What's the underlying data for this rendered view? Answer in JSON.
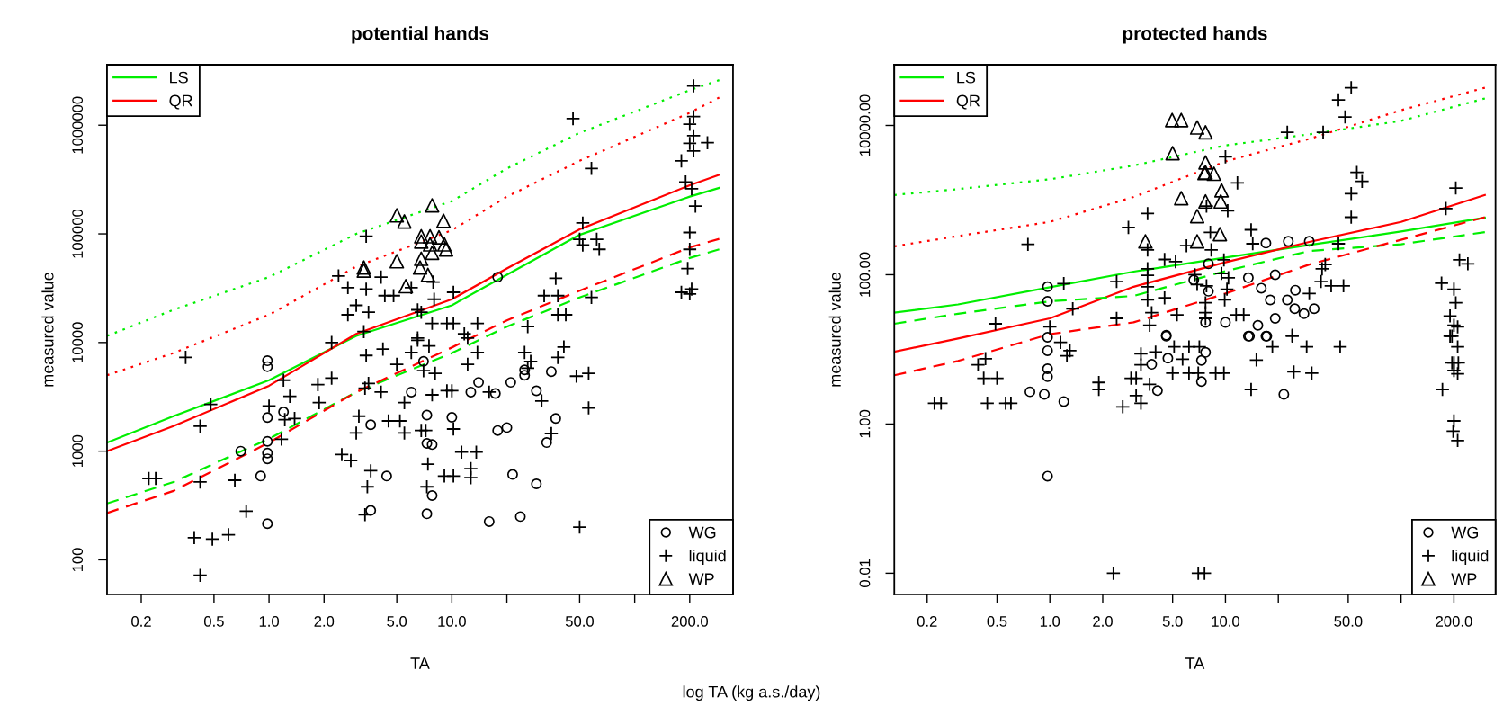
{
  "chart_data": [
    {
      "type": "scatter",
      "title": "potential hands",
      "xlabel": "TA",
      "ylabel": "measured value",
      "log": "xy",
      "legend": [
        "top left",
        "bottom right"
      ],
      "xlim": [
        0.13,
        345
      ],
      "ylim": [
        48,
        3600000
      ],
      "xticks": [
        {
          "value": 0.2,
          "label": "0.2"
        },
        {
          "value": 0.5,
          "label": "0.5"
        },
        {
          "value": 1,
          "label": "1.0"
        },
        {
          "value": 2,
          "label": "2.0"
        },
        {
          "value": 5,
          "label": "5.0"
        },
        {
          "value": 10,
          "label": "10.0"
        },
        {
          "value": 20,
          "label": null
        },
        {
          "value": 50,
          "label": "50.0"
        },
        {
          "value": 100,
          "label": null
        },
        {
          "value": 200,
          "label": "200.0"
        }
      ],
      "yticks": [
        100,
        1000,
        10000,
        100000,
        1000000
      ],
      "annotations": [
        "log TA (kg a.s./day)"
      ],
      "series": [
        {
          "name": "LS",
          "type": "line",
          "line_style": "solid",
          "color": "#00ee00",
          "x": [
            0.13,
            0.3,
            1,
            3,
            10,
            20,
            50,
            200,
            290
          ],
          "values": [
            1200,
            2100,
            4500,
            11500,
            22000,
            42000,
            98000,
            220000,
            265000
          ]
        },
        {
          "name": "QR",
          "type": "line",
          "line_style": "solid",
          "color": "#ff0000",
          "x": [
            0.13,
            0.3,
            1,
            3,
            10,
            20,
            50,
            200,
            290
          ],
          "values": [
            1000,
            1700,
            4000,
            12000,
            25000,
            48000,
            110000,
            280000,
            350000
          ]
        },
        {
          "type": "line",
          "line_style": "dashed",
          "color": "#00ee00",
          "x": [
            0.13,
            0.3,
            1,
            3,
            10,
            20,
            50,
            200,
            290
          ],
          "values": [
            330,
            520,
            1300,
            3500,
            8000,
            14000,
            26000,
            60000,
            72000
          ]
        },
        {
          "type": "line",
          "line_style": "dashed",
          "color": "#ff0000",
          "x": [
            0.13,
            0.3,
            1,
            3,
            10,
            20,
            50,
            200,
            290
          ],
          "values": [
            270,
            430,
            1200,
            3500,
            9000,
            16000,
            30000,
            75000,
            90000
          ]
        },
        {
          "type": "line",
          "line_style": "dotted",
          "color": "#00ee00",
          "x": [
            0.13,
            0.3,
            1,
            3,
            10,
            20,
            50,
            200,
            290
          ],
          "values": [
            11500,
            20000,
            40000,
            100000,
            200000,
            400000,
            850000,
            2100000,
            2600000
          ]
        },
        {
          "type": "line",
          "line_style": "dotted",
          "color": "#ff0000",
          "x": [
            0.13,
            0.3,
            1,
            3,
            10,
            20,
            50,
            200,
            290
          ],
          "values": [
            5000,
            8000,
            18000,
            50000,
            108000,
            220000,
            470000,
            1300000,
            1800000
          ]
        },
        {
          "name": "WG",
          "marker": "circle",
          "color": "#000000",
          "x": [
            0.98,
            0.98,
            0.98,
            0.98,
            0.98,
            0.98,
            0.98,
            0.7,
            0.9,
            1.2,
            3.6,
            3.6,
            4.4,
            6.0,
            7.0,
            7.3,
            7.3,
            7.8,
            7.8,
            7.3,
            10,
            12.7,
            14,
            17.3,
            17.8,
            20,
            21,
            21.5,
            23.7,
            16,
            25,
            25,
            29,
            29,
            35,
            37,
            33,
            17.8
          ],
          "values": [
            6800,
            6000,
            2040,
            1230,
            960,
            850,
            215,
            1000,
            590,
            2300,
            1750,
            285,
            590,
            3500,
            6700,
            2150,
            1180,
            1150,
            390,
            265,
            2050,
            3500,
            4300,
            3400,
            1550,
            1650,
            4300,
            610,
            250,
            225,
            5600,
            5000,
            3600,
            500,
            5400,
            2000,
            1200,
            40000
          ]
        },
        {
          "name": "liquid",
          "marker": "cross",
          "color": "#000000",
          "x": [
            210,
            46,
            210,
            200,
            210,
            250,
            200,
            210,
            58,
            180,
            190,
            205,
            215,
            52,
            50,
            62,
            52,
            64,
            200,
            200,
            195,
            180,
            200,
            205,
            37,
            32,
            38,
            58,
            38,
            42,
            26,
            3.4,
            2.4,
            2.7,
            3.4,
            4.1,
            3.0,
            2.7,
            3.5,
            4.3,
            4.8,
            6.0,
            7.9,
            10.2,
            8.0,
            6.5,
            6.8,
            7.8,
            9.4,
            10.2,
            13.8,
            11.7,
            6.5,
            3.3,
            0.35,
            0.42,
            0.48,
            0.22,
            0.24,
            0.42,
            0.65,
            0.75,
            0.39,
            0.49,
            0.6,
            0.42,
            1.0,
            1.17,
            1.2,
            1.3,
            1.22,
            1.38,
            1.85,
            2.2,
            1.88,
            2.2,
            3.4,
            3.5,
            3.35,
            3.1,
            3.0,
            2.5,
            2.8,
            3.6,
            3.45,
            3.35,
            4.2,
            5.0,
            4.1,
            5.5,
            4.5,
            5.2,
            5.5,
            6.0,
            6.5,
            7.5,
            7.0,
            8.1,
            7.8,
            6.8,
            7.2,
            7.4,
            7.3,
            9.1,
            10.2,
            10.2,
            11.3,
            12.7,
            12.7,
            13.6,
            10.0,
            9.4,
            12.2,
            12.2,
            13.8,
            16,
            31,
            25,
            27,
            26,
            41,
            38,
            48,
            56,
            56,
            35,
            50
          ],
          "values": [
            2300000,
            1150000,
            1200000,
            1020000,
            800000,
            690000,
            680000,
            580000,
            400000,
            470000,
            300000,
            260000,
            180000,
            126000,
            89000,
            89000,
            79000,
            72000,
            103000,
            72000,
            48000,
            29000,
            28000,
            31000,
            39000,
            27000,
            27000,
            26000,
            18000,
            18000,
            14000,
            95000,
            41000,
            32000,
            31000,
            40000,
            22000,
            18000,
            19000,
            27000,
            27000,
            32000,
            36000,
            29000,
            25000,
            20000,
            19000,
            15000,
            15000,
            15000,
            15000,
            12000,
            11000,
            12600,
            7300,
            1700,
            2700,
            560,
            560,
            520,
            540,
            280,
            160,
            155,
            170,
            72,
            2600,
            1290,
            4500,
            3200,
            1950,
            2000,
            4100,
            4700,
            2800,
            10000,
            7600,
            4200,
            3800,
            2100,
            1470,
            930,
            820,
            660,
            470,
            260,
            8700,
            6300,
            3500,
            2800,
            1900,
            1900,
            1470,
            8100,
            10500,
            9300,
            5500,
            5200,
            3300,
            1550,
            1550,
            760,
            470,
            590,
            590,
            1600,
            980,
            690,
            570,
            980,
            3600,
            3600,
            6300,
            11000,
            8100,
            3500,
            2900,
            8100,
            6700,
            5800,
            9100,
            7300,
            4900,
            5200,
            2500,
            1450,
            200
          ]
        },
        {
          "name": "WP",
          "marker": "triangle",
          "color": "#000000",
          "x": [
            5.0,
            7.8,
            5.5,
            9.0,
            6.8,
            7.6,
            8.5,
            6.8,
            7.6,
            9.1,
            9.3,
            5.0,
            3.3,
            3.3,
            6.8,
            6.7,
            7.4,
            5.6,
            7.8
          ],
          "values": [
            148000,
            183000,
            130000,
            132000,
            95000,
            95000,
            93000,
            85000,
            80000,
            80000,
            72000,
            56000,
            49000,
            46000,
            59000,
            49000,
            42000,
            33000,
            67000
          ]
        }
      ]
    },
    {
      "type": "scatter",
      "title": "protected hands",
      "xlabel": "TA",
      "ylabel": "measured value",
      "log": "xy",
      "legend": [
        "top left",
        "bottom right"
      ],
      "xlim": [
        0.13,
        345
      ],
      "ylim": [
        0.0052,
        65000
      ],
      "xticks": [
        {
          "value": 0.2,
          "label": "0.2"
        },
        {
          "value": 0.5,
          "label": "0.5"
        },
        {
          "value": 1,
          "label": "1.0"
        },
        {
          "value": 2,
          "label": "2.0"
        },
        {
          "value": 5,
          "label": "5.0"
        },
        {
          "value": 10,
          "label": "10.0"
        },
        {
          "value": 20,
          "label": null
        },
        {
          "value": 50,
          "label": "50.0"
        },
        {
          "value": 100,
          "label": null
        },
        {
          "value": 200,
          "label": "200.0"
        }
      ],
      "yticks": [
        {
          "value": 0.01,
          "label": "0.01"
        },
        {
          "value": 1,
          "label": "1.00"
        },
        {
          "value": 100,
          "label": "100.00"
        },
        {
          "value": 10000,
          "label": "10000.00"
        }
      ],
      "series": [
        {
          "name": "LS",
          "type": "line",
          "line_style": "solid",
          "color": "#00ee00",
          "x": [
            0.13,
            0.3,
            1,
            3,
            10,
            30,
            100,
            300
          ],
          "values": [
            31,
            40,
            68,
            110,
            170,
            250,
            380,
            580
          ]
        },
        {
          "name": "QR",
          "type": "line",
          "line_style": "solid",
          "color": "#ff0000",
          "x": [
            0.13,
            0.3,
            1,
            3,
            10,
            30,
            100,
            300
          ],
          "values": [
            9.3,
            14,
            26,
            69,
            147,
            275,
            510,
            1170
          ]
        },
        {
          "type": "line",
          "line_style": "dashed",
          "color": "#00ee00",
          "x": [
            0.13,
            0.3,
            1,
            3,
            10,
            30,
            100,
            300
          ],
          "values": [
            22,
            30,
            44,
            52,
            112,
            208,
            256,
            372
          ]
        },
        {
          "type": "line",
          "line_style": "dashed",
          "color": "#ff0000",
          "x": [
            0.13,
            0.3,
            1,
            3,
            10,
            30,
            100,
            300
          ],
          "values": [
            4.5,
            7,
            16,
            23,
            56,
            137,
            294,
            590
          ]
        },
        {
          "type": "line",
          "line_style": "dotted",
          "color": "#00ee00",
          "x": [
            0.13,
            0.3,
            1,
            3,
            10,
            30,
            100,
            300
          ],
          "values": [
            1170,
            1400,
            1900,
            2900,
            5400,
            7600,
            11500,
            23000
          ]
        },
        {
          "type": "line",
          "line_style": "dotted",
          "color": "#ff0000",
          "x": [
            0.13,
            0.3,
            1,
            3,
            10,
            30,
            100,
            300
          ],
          "values": [
            240,
            330,
            510,
            1100,
            3300,
            6600,
            16000,
            32000
          ]
        },
        {
          "name": "WG",
          "marker": "circle",
          "color": "#000000",
          "x": [
            0.97,
            0.97,
            17,
            22.8,
            30,
            19.2,
            16,
            18,
            25,
            22.5,
            24.8,
            28,
            32,
            19.2,
            15.3,
            10,
            13.5,
            8.0,
            6.6,
            7.7,
            4.6,
            8.0,
            17.2,
            13.7,
            0.97,
            0.97,
            0.97,
            0.97,
            0.93,
            0.77,
            1.2,
            0.97,
            3.8,
            4.1,
            4.6,
            4.7,
            7.3,
            7.3,
            7.7,
            13.5,
            17,
            21.5
          ],
          "values": [
            69,
            44,
            265,
            280,
            280,
            100,
            66,
            46,
            62,
            46,
            35,
            30,
            35,
            26,
            21,
            23,
            91,
            140,
            85,
            23,
            15,
            60,
            15,
            15,
            14.5,
            9.6,
            5.5,
            4.3,
            2.5,
            2.7,
            2.0,
            0.2,
            6.3,
            2.8,
            15.5,
            7.6,
            7.1,
            3.7,
            9.1,
            15,
            15,
            2.5
          ]
        },
        {
          "name": "liquid",
          "marker": "cross",
          "color": "#000000",
          "x": [
            52,
            44,
            48,
            22.5,
            36,
            10,
            11.7,
            56,
            60,
            52,
            205,
            180,
            52,
            10.3,
            7.8,
            3.6,
            2.8,
            0.75,
            14,
            14.3,
            44,
            37,
            35,
            40,
            47,
            215,
            240,
            170,
            200,
            205,
            190,
            200,
            210,
            190,
            2.4,
            2.4,
            1.2,
            1.35,
            1.0,
            0.49,
            3.6,
            3.6,
            4.5,
            5.2,
            3.6,
            3.6,
            3.6,
            3.8,
            3.7,
            4.5,
            5.3,
            6.0,
            6.7,
            6.9,
            7.8,
            7.7,
            7.7,
            7.7,
            8.2,
            8.3,
            10.4,
            9.8,
            9.5,
            10.2,
            9.9,
            11.5,
            12.7,
            24,
            35.5,
            30,
            24,
            29,
            45,
            195,
            210,
            195,
            200,
            212,
            200,
            210,
            172,
            200,
            198,
            210,
            24.5,
            31,
            18.5,
            15,
            14,
            8.8,
            9.8,
            6.2,
            7.0,
            5.0,
            5.1,
            6.2,
            7.1,
            5.7,
            4.0,
            3.7,
            3.3,
            3.3,
            2.9,
            3.1,
            3.1,
            3.3,
            2.6,
            1.9,
            1.9,
            1.15,
            1.25,
            1.3,
            0.5,
            0.42,
            0.39,
            0.43,
            0.44,
            0.22,
            0.24,
            0.56,
            0.6,
            2.3,
            7.0,
            7.6
          ],
          "values": [
            32000,
            22000,
            13000,
            8100,
            8100,
            3800,
            1700,
            2350,
            1780,
            1220,
            1450,
            770,
            590,
            720,
            830,
            660,
            430,
            255,
            400,
            260,
            260,
            137,
            81,
            71,
            71,
            158,
            140,
            77,
            64,
            42,
            28,
            21,
            20,
            15,
            81,
            26,
            76,
            35,
            20,
            22,
            215,
            120,
            160,
            150,
            98,
            69,
            46,
            31,
            21,
            49,
            29,
            245,
            100,
            74,
            71,
            42,
            31,
            26,
            370,
            215,
            91,
            158,
            104,
            64,
            46,
            29,
            29,
            15,
            120,
            56,
            15.4,
            10.8,
            10.8,
            15,
            10.8,
            6.6,
            6.6,
            6.6,
            5.2,
            4.7,
            2.9,
            1.1,
            0.8,
            0.6,
            5.0,
            4.8,
            10.8,
            7.2,
            2.9,
            4.8,
            4.8,
            4.8,
            4.8,
            4.8,
            10.8,
            10.8,
            10.8,
            7.4,
            9.2,
            3.4,
            8.7,
            6.2,
            4.1,
            4.1,
            2.4,
            1.9,
            1.7,
            3.6,
            2.9,
            12.4,
            8.2,
            9.6,
            4.1,
            4.1,
            6.2,
            7.5,
            1.9,
            1.9,
            1.9,
            1.9,
            1.9,
            0.01,
            0.01,
            0.01
          ]
        },
        {
          "name": "WP",
          "marker": "triangle",
          "color": "#000000",
          "x": [
            4.97,
            5.6,
            6.9,
            7.7,
            5.0,
            7.7,
            7.7,
            8.6,
            7.6,
            9.5,
            5.6,
            7.7,
            9.4,
            6.9,
            9.3,
            6.9,
            3.5
          ],
          "values": [
            11800,
            11800,
            9400,
            8100,
            4250,
            3200,
            2350,
            2250,
            2300,
            1350,
            1060,
            960,
            960,
            610,
            350,
            280,
            280
          ]
        }
      ]
    }
  ]
}
